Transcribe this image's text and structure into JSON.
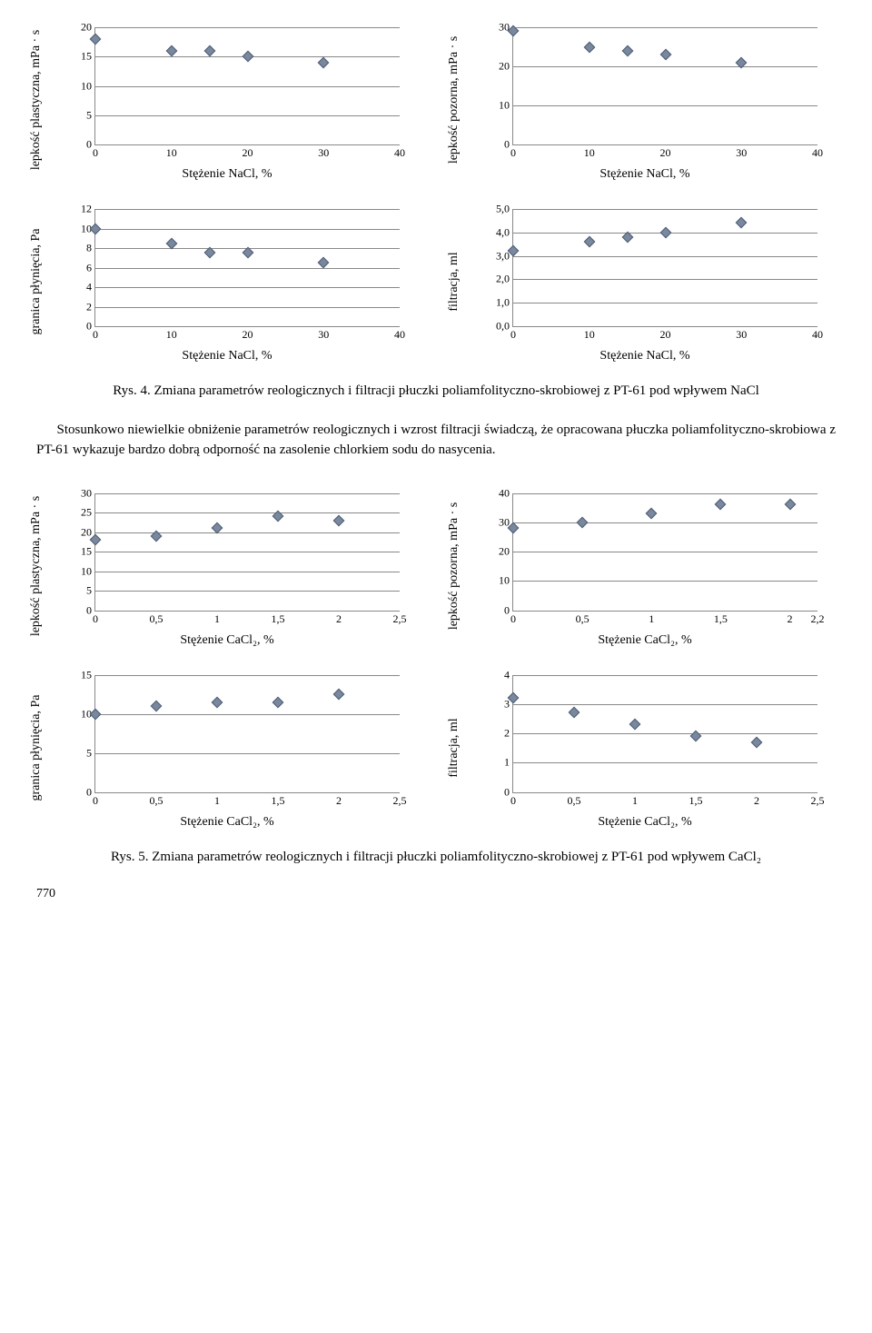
{
  "marker_color": "#7a889e",
  "grid_color": "#888888",
  "charts_nacl": {
    "xticks": [
      0,
      10,
      20,
      30,
      40
    ],
    "xlabel": "Stężenie NaCl, %",
    "plastyczna": {
      "ylabel": "lepkość plastyczna, mPa · s",
      "ylim": [
        0,
        20
      ],
      "ystep": 5,
      "points": [
        [
          0,
          18
        ],
        [
          10,
          16
        ],
        [
          15,
          16
        ],
        [
          20,
          15
        ],
        [
          30,
          14
        ]
      ]
    },
    "pozorna": {
      "ylabel": "lepkość pozorna, mPa · s",
      "ylim": [
        0,
        30
      ],
      "ystep": 10,
      "points": [
        [
          0,
          29
        ],
        [
          10,
          25
        ],
        [
          15,
          24
        ],
        [
          20,
          23
        ],
        [
          30,
          21
        ]
      ]
    },
    "granica": {
      "ylabel": "granica płynięcia, Pa",
      "ylim": [
        0,
        12
      ],
      "ystep": 2,
      "points": [
        [
          0,
          10
        ],
        [
          10,
          8.5
        ],
        [
          15,
          7.5
        ],
        [
          20,
          7.5
        ],
        [
          30,
          6.5
        ]
      ]
    },
    "filtracja": {
      "ylabel": "filtracja, ml",
      "ylim": [
        0,
        5
      ],
      "ystep": 1,
      "decimals": 1,
      "points": [
        [
          0,
          3.2
        ],
        [
          10,
          3.6
        ],
        [
          15,
          3.8
        ],
        [
          20,
          4.0
        ],
        [
          30,
          4.4
        ]
      ]
    }
  },
  "caption1_b": "Rys. 4.",
  "caption1": " Zmiana parametrów reologicznych i filtracji płuczki poliamfolityczno-skrobiowej z  PT-61 pod wpływem NaCl",
  "paragraph": "Stosunkowo niewielkie obniżenie parametrów reologicznych i wzrost filtracji świadczą, że opracowana płuczka poliamfolityczno-skrobiowa z PT-61 wykazuje bardzo dobrą odporność na zasolenie chlorkiem sodu do nasycenia.",
  "charts_cacl2": {
    "xticks": [
      0,
      0.5,
      1,
      1.5,
      2,
      2.5
    ],
    "xticks_alt": [
      0,
      0.5,
      1,
      1.5,
      2,
      2.2
    ],
    "xlabel": "Stężenie CaCl₂, %",
    "plastyczna": {
      "ylabel": "lepkość plastyczna, mPa · s",
      "ylim": [
        0,
        30
      ],
      "ystep": 5,
      "points": [
        [
          0,
          18
        ],
        [
          0.5,
          19
        ],
        [
          1,
          21
        ],
        [
          1.5,
          24
        ],
        [
          2,
          23
        ]
      ]
    },
    "pozorna": {
      "ylabel": "lepkość pozorna, mPa · s",
      "ylim": [
        0,
        40
      ],
      "ystep": 10,
      "points": [
        [
          0,
          28
        ],
        [
          0.5,
          30
        ],
        [
          1,
          33
        ],
        [
          1.5,
          36
        ],
        [
          2,
          36
        ]
      ]
    },
    "granica": {
      "ylabel": "granica płynięcia, Pa",
      "ylim": [
        0,
        15
      ],
      "ystep": 5,
      "points": [
        [
          0,
          10
        ],
        [
          0.5,
          11
        ],
        [
          1,
          11.5
        ],
        [
          1.5,
          11.5
        ],
        [
          2,
          12.5
        ]
      ]
    },
    "filtracja": {
      "ylabel": "filtracja, ml",
      "ylim": [
        0,
        4
      ],
      "ystep": 1,
      "points": [
        [
          0,
          3.2
        ],
        [
          0.5,
          2.7
        ],
        [
          1,
          2.3
        ],
        [
          1.5,
          1.9
        ],
        [
          2,
          1.7
        ]
      ]
    }
  },
  "caption2_b": "Rys. 5.",
  "caption2": " Zmiana parametrów reologicznych i filtracji płuczki poliamfolityczno-skrobiowej z PT-61 pod wpływem CaCl₂",
  "page_number": "770"
}
